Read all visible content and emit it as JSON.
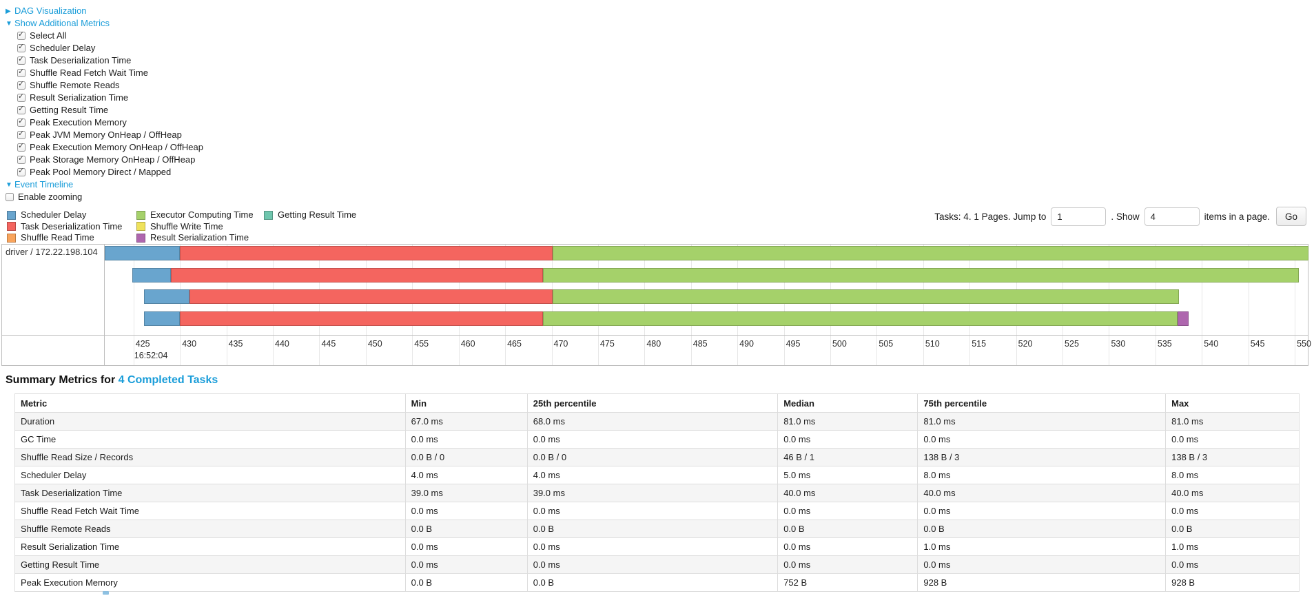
{
  "accent": {
    "link_blue": "#1a9dd9"
  },
  "controls": {
    "dag_label": "DAG Visualization",
    "metrics_label": "Show Additional Metrics",
    "metric_checkboxes": [
      "Select All",
      "Scheduler Delay",
      "Task Deserialization Time",
      "Shuffle Read Fetch Wait Time",
      "Shuffle Remote Reads",
      "Result Serialization Time",
      "Getting Result Time",
      "Peak Execution Memory",
      "Peak JVM Memory OnHeap / OffHeap",
      "Peak Execution Memory OnHeap / OffHeap",
      "Peak Storage Memory OnHeap / OffHeap",
      "Peak Pool Memory Direct / Mapped"
    ],
    "event_timeline_label": "Event Timeline",
    "enable_zooming_label": "Enable zooming"
  },
  "legend": {
    "columns": [
      [
        {
          "label": "Scheduler Delay",
          "color": "#69A5CE"
        },
        {
          "label": "Task Deserialization Time",
          "color": "#F4655F"
        },
        {
          "label": "Shuffle Read Time",
          "color": "#F9A45C"
        }
      ],
      [
        {
          "label": "Executor Computing Time",
          "color": "#A5D16A"
        },
        {
          "label": "Shuffle Write Time",
          "color": "#EFE25B"
        },
        {
          "label": "Result Serialization Time",
          "color": "#AE66AE"
        }
      ],
      [
        {
          "label": "Getting Result Time",
          "color": "#6FC6AE"
        }
      ]
    ]
  },
  "pagination": {
    "tasks_text": "Tasks: 4. 1 Pages. Jump to",
    "jump_value": "1",
    "show_text": ". Show",
    "show_value": "4",
    "items_text": "items in a page.",
    "go_label": "Go"
  },
  "chart_data": {
    "type": "timeline",
    "row_label": "driver / 172.22.198.104",
    "x_start_label": "16:52:04",
    "x_unit": "milliseconds after 16:52:04",
    "axis": {
      "min": 421.9,
      "max": 551.4,
      "ticks": [
        425,
        430,
        435,
        440,
        445,
        450,
        455,
        460,
        465,
        470,
        475,
        480,
        485,
        490,
        495,
        500,
        505,
        510,
        515,
        520,
        525,
        530,
        535,
        540,
        545,
        550
      ]
    },
    "colors": {
      "scheduler_delay": "#69A5CE",
      "task_deserialization": "#F4655F",
      "executor_computing": "#A5D16A",
      "result_serialization": "#AE66AE"
    },
    "tasks": [
      {
        "segments": [
          {
            "key": "scheduler_delay",
            "start": 421.9,
            "end": 430.0
          },
          {
            "key": "task_deserialization",
            "start": 430.0,
            "end": 470.1
          },
          {
            "key": "executor_computing",
            "start": 470.1,
            "end": 551.5
          }
        ]
      },
      {
        "segments": [
          {
            "key": "scheduler_delay",
            "start": 424.9,
            "end": 429.0
          },
          {
            "key": "task_deserialization",
            "start": 429.0,
            "end": 469.1
          },
          {
            "key": "executor_computing",
            "start": 469.1,
            "end": 550.4
          }
        ]
      },
      {
        "segments": [
          {
            "key": "scheduler_delay",
            "start": 426.1,
            "end": 431.0
          },
          {
            "key": "task_deserialization",
            "start": 431.0,
            "end": 470.1
          },
          {
            "key": "executor_computing",
            "start": 470.1,
            "end": 537.5
          }
        ]
      },
      {
        "segments": [
          {
            "key": "scheduler_delay",
            "start": 426.1,
            "end": 430.0
          },
          {
            "key": "task_deserialization",
            "start": 430.0,
            "end": 469.1
          },
          {
            "key": "executor_computing",
            "start": 469.1,
            "end": 537.4
          },
          {
            "key": "result_serialization",
            "start": 537.4,
            "end": 538.6
          }
        ]
      }
    ]
  },
  "summary": {
    "title": "Summary Metrics for ",
    "title_link": "4 Completed Tasks",
    "columns": [
      "Metric",
      "Min",
      "25th percentile",
      "Median",
      "75th percentile",
      "Max"
    ],
    "col_widths_pct": [
      30.4,
      9.5,
      19.5,
      10.9,
      19.3,
      10.4
    ],
    "rows": [
      [
        "Duration",
        "67.0 ms",
        "68.0 ms",
        "81.0 ms",
        "81.0 ms",
        "81.0 ms"
      ],
      [
        "GC Time",
        "0.0 ms",
        "0.0 ms",
        "0.0 ms",
        "0.0 ms",
        "0.0 ms"
      ],
      [
        "Shuffle Read Size / Records",
        "0.0 B / 0",
        "0.0 B / 0",
        "46 B / 1",
        "138 B / 3",
        "138 B / 3"
      ],
      [
        "Scheduler Delay",
        "4.0 ms",
        "4.0 ms",
        "5.0 ms",
        "8.0 ms",
        "8.0 ms"
      ],
      [
        "Task Deserialization Time",
        "39.0 ms",
        "39.0 ms",
        "40.0 ms",
        "40.0 ms",
        "40.0 ms"
      ],
      [
        "Shuffle Read Fetch Wait Time",
        "0.0 ms",
        "0.0 ms",
        "0.0 ms",
        "0.0 ms",
        "0.0 ms"
      ],
      [
        "Shuffle Remote Reads",
        "0.0 B",
        "0.0 B",
        "0.0 B",
        "0.0 B",
        "0.0 B"
      ],
      [
        "Result Serialization Time",
        "0.0 ms",
        "0.0 ms",
        "0.0 ms",
        "1.0 ms",
        "1.0 ms"
      ],
      [
        "Getting Result Time",
        "0.0 ms",
        "0.0 ms",
        "0.0 ms",
        "0.0 ms",
        "0.0 ms"
      ],
      [
        "Peak Execution Memory",
        "0.0 B",
        "0.0 B",
        "752 B",
        "928 B",
        "928 B"
      ]
    ]
  }
}
